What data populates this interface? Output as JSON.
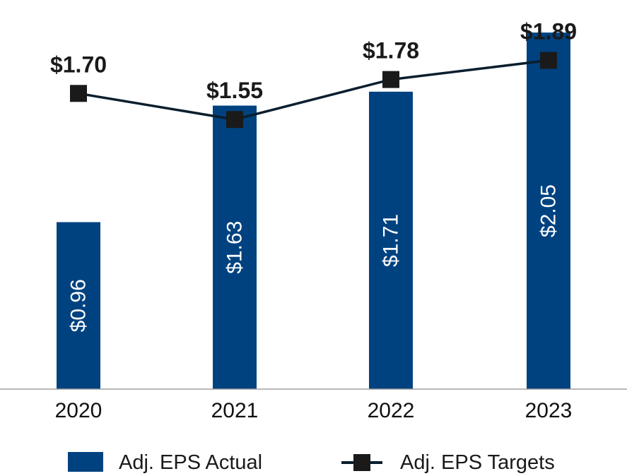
{
  "chart_data": {
    "type": "bar",
    "title": "",
    "xlabel": "",
    "ylabel": "",
    "ylim": [
      0,
      2.1
    ],
    "grid": false,
    "legend_position": "bottom",
    "categories": [
      "2020",
      "2021",
      "2022",
      "2023"
    ],
    "series": [
      {
        "name": "Adj. EPS Actual",
        "type": "bar",
        "color": "#004280",
        "values": [
          0.96,
          1.63,
          1.71,
          2.05
        ],
        "labels": [
          "$0.96",
          "$1.63",
          "$1.71",
          "$2.05"
        ]
      },
      {
        "name": "Adj. EPS Targets",
        "type": "line",
        "color": "#000000",
        "line_color": "#0a1e2e",
        "values": [
          1.7,
          1.55,
          1.78,
          1.89
        ],
        "labels": [
          "$1.70",
          "$1.55",
          "$1.78",
          "$1.89"
        ]
      }
    ]
  }
}
